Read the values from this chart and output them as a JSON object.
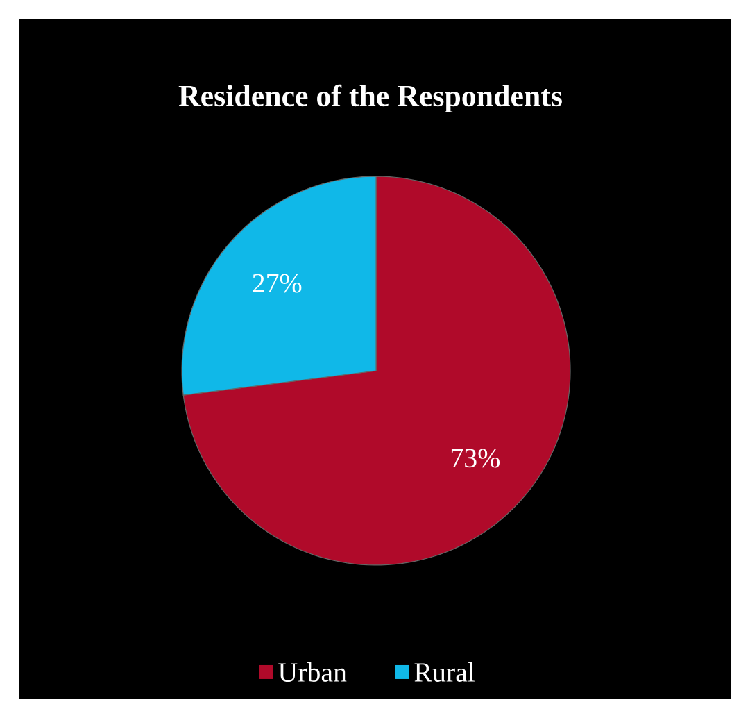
{
  "chart_data": {
    "type": "pie",
    "title": "Residence of the Respondents",
    "categories": [
      "Urban",
      "Rural"
    ],
    "values": [
      73,
      27
    ],
    "value_labels": [
      "73%",
      "27%"
    ],
    "colors": [
      "#b00a2a",
      "#10b8e8"
    ],
    "legend": "bottom"
  }
}
